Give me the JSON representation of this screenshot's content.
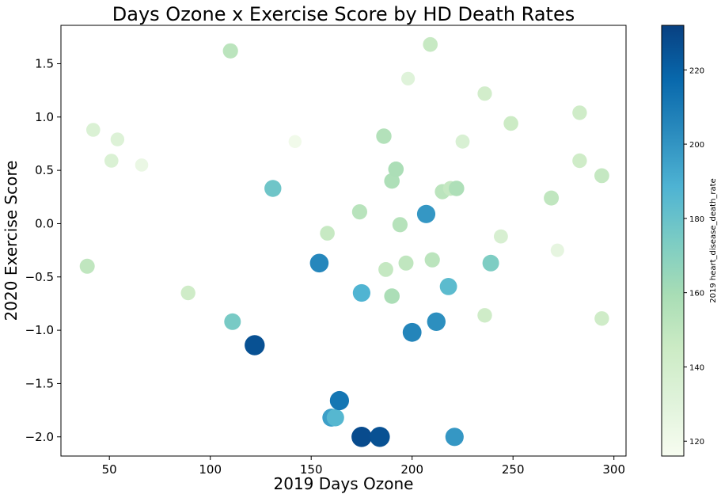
{
  "chart_data": {
    "type": "scatter",
    "title": "Days Ozone x Exercise Score by HD Death Rates",
    "xlabel": "2019 Days Ozone",
    "ylabel": "2020 Exercise Score",
    "xlim": [
      26,
      306
    ],
    "ylim": [
      -2.18,
      1.86
    ],
    "xticks": [
      50,
      100,
      150,
      200,
      250,
      300
    ],
    "xtick_labels": [
      "50",
      "100",
      "150",
      "200",
      "250",
      "300"
    ],
    "yticks": [
      -2.0,
      -1.5,
      -1.0,
      -0.5,
      0.0,
      0.5,
      1.0,
      1.5
    ],
    "ytick_labels": [
      "−2.0",
      "−1.5",
      "−1.0",
      "−0.5",
      "0.0",
      "0.5",
      "1.0",
      "1.5"
    ],
    "grid": false,
    "colorbar": {
      "label": "2019 heart_disease_death_rate",
      "colormap": "GnBu",
      "range": [
        116,
        232
      ],
      "ticks": [
        120,
        140,
        160,
        180,
        200,
        220
      ],
      "tick_labels": [
        "120",
        "140",
        "160",
        "180",
        "200",
        "220"
      ],
      "colors": [
        "#f7fcf0",
        "#e0f3db",
        "#ccebc5",
        "#a8ddb5",
        "#7bccc4",
        "#4eb3d3",
        "#2b8cbe",
        "#0868ac",
        "#084081"
      ]
    },
    "points": [
      {
        "x": 39,
        "y": -0.4,
        "c": 150
      },
      {
        "x": 42,
        "y": 0.88,
        "c": 135
      },
      {
        "x": 51,
        "y": 0.59,
        "c": 135
      },
      {
        "x": 54,
        "y": 0.79,
        "c": 133
      },
      {
        "x": 66,
        "y": 0.55,
        "c": 124
      },
      {
        "x": 89,
        "y": -0.65,
        "c": 143
      },
      {
        "x": 110,
        "y": 1.62,
        "c": 152
      },
      {
        "x": 111,
        "y": -0.92,
        "c": 175
      },
      {
        "x": 122,
        "y": -1.14,
        "c": 226
      },
      {
        "x": 131,
        "y": 0.33,
        "c": 178
      },
      {
        "x": 142,
        "y": 0.77,
        "c": 120
      },
      {
        "x": 154,
        "y": -0.37,
        "c": 205
      },
      {
        "x": 158,
        "y": -0.09,
        "c": 147
      },
      {
        "x": 160,
        "y": -1.82,
        "c": 196
      },
      {
        "x": 162,
        "y": -1.82,
        "c": 186
      },
      {
        "x": 164,
        "y": -1.66,
        "c": 212
      },
      {
        "x": 174,
        "y": 0.11,
        "c": 153
      },
      {
        "x": 175,
        "y": -2.0,
        "c": 228
      },
      {
        "x": 175,
        "y": -0.65,
        "c": 188
      },
      {
        "x": 184,
        "y": -2.0,
        "c": 226
      },
      {
        "x": 186,
        "y": 0.82,
        "c": 155
      },
      {
        "x": 187,
        "y": -0.43,
        "c": 148
      },
      {
        "x": 190,
        "y": 0.4,
        "c": 157
      },
      {
        "x": 190,
        "y": -0.68,
        "c": 158
      },
      {
        "x": 192,
        "y": 0.51,
        "c": 158
      },
      {
        "x": 194,
        "y": -0.01,
        "c": 154
      },
      {
        "x": 197,
        "y": -0.37,
        "c": 150
      },
      {
        "x": 198,
        "y": 1.36,
        "c": 131
      },
      {
        "x": 200,
        "y": -1.02,
        "c": 206
      },
      {
        "x": 207,
        "y": 0.09,
        "c": 199
      },
      {
        "x": 209,
        "y": 1.68,
        "c": 147
      },
      {
        "x": 210,
        "y": -0.34,
        "c": 152
      },
      {
        "x": 212,
        "y": -0.92,
        "c": 202
      },
      {
        "x": 215,
        "y": 0.3,
        "c": 152
      },
      {
        "x": 218,
        "y": -0.59,
        "c": 184
      },
      {
        "x": 219,
        "y": 0.33,
        "c": 148
      },
      {
        "x": 221,
        "y": -2.0,
        "c": 199
      },
      {
        "x": 222,
        "y": 0.33,
        "c": 157
      },
      {
        "x": 225,
        "y": 0.77,
        "c": 136
      },
      {
        "x": 236,
        "y": -0.86,
        "c": 143
      },
      {
        "x": 236,
        "y": 1.22,
        "c": 141
      },
      {
        "x": 239,
        "y": -0.37,
        "c": 173
      },
      {
        "x": 244,
        "y": -0.12,
        "c": 137
      },
      {
        "x": 249,
        "y": 0.94,
        "c": 145
      },
      {
        "x": 269,
        "y": 0.24,
        "c": 150
      },
      {
        "x": 272,
        "y": -0.25,
        "c": 127
      },
      {
        "x": 283,
        "y": 1.04,
        "c": 143
      },
      {
        "x": 283,
        "y": 0.59,
        "c": 143
      },
      {
        "x": 294,
        "y": 0.45,
        "c": 148
      },
      {
        "x": 294,
        "y": -0.89,
        "c": 143
      }
    ]
  }
}
